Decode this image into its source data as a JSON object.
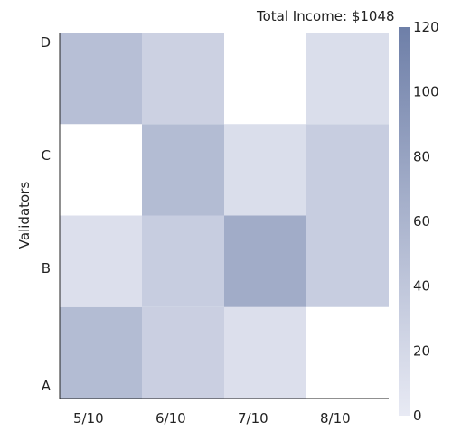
{
  "chart_data": {
    "type": "heatmap",
    "total_label": "Total Income: $1048",
    "ylabel": "Validators",
    "x_categories": [
      "5/10",
      "6/10",
      "7/10",
      "8/10"
    ],
    "y_categories": [
      "A",
      "B",
      "C",
      "D"
    ],
    "y_ticks": [
      {
        "label": "A",
        "value": 0
      },
      {
        "label": "B",
        "value": 1.3
      },
      {
        "label": "C",
        "value": 2.55
      },
      {
        "label": "D",
        "value": 3.8
      }
    ],
    "values": [
      [
        52,
        30,
        12,
        0
      ],
      [
        12,
        32,
        70,
        32
      ],
      [
        0,
        52,
        14,
        32
      ],
      [
        48,
        28,
        0,
        14
      ]
    ],
    "colorscale": {
      "min": 0,
      "max": 120,
      "ticks": [
        0,
        20,
        40,
        60,
        80,
        100,
        120
      ],
      "low_color": "#e8eaf4",
      "high_color": "#6e7fa8"
    }
  }
}
